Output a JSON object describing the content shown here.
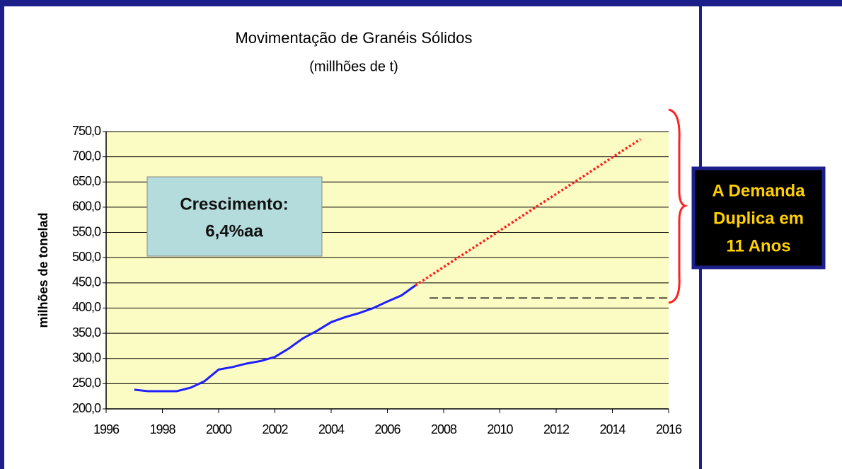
{
  "chart_data": {
    "type": "line",
    "title": "Movimentação de Granéis Sólidos",
    "subtitle": "(millhões de t)",
    "y_label": "milhões de tonelad",
    "series": [
      {
        "color": "#1f1fff",
        "style": "solid",
        "x": [
          1997,
          1997.5,
          1998,
          1998.5,
          1999,
          1999.5,
          2000,
          2000.5,
          2001,
          2001.5,
          2002,
          2002.5,
          2003,
          2003.5,
          2004,
          2004.5,
          2005,
          2005.5,
          2006,
          2006.5,
          2007
        ],
        "values": [
          238,
          235,
          235,
          235,
          242,
          255,
          278,
          283,
          290,
          295,
          303,
          320,
          340,
          355,
          372,
          382,
          390,
          400,
          413,
          425,
          445
        ]
      },
      {
        "color": "#ff1f1f",
        "style": "dotted",
        "x": [
          2007,
          2015
        ],
        "values": [
          445,
          735
        ]
      }
    ],
    "reference_line": {
      "y": 420,
      "x": [
        2007.5,
        2016
      ]
    },
    "xlim": [
      1996,
      2016
    ],
    "xticks": [
      1996,
      1998,
      2000,
      2002,
      2004,
      2006,
      2008,
      2010,
      2012,
      2014,
      2016
    ],
    "ylim": [
      200,
      750
    ],
    "yticks": [
      {
        "value": 200,
        "label": "200,0"
      },
      {
        "value": 250,
        "label": "250,0"
      },
      {
        "value": 300,
        "label": "300,0"
      },
      {
        "value": 350,
        "label": "350,0"
      },
      {
        "value": 400,
        "label": "400,0"
      },
      {
        "value": 450,
        "label": "450,0"
      },
      {
        "value": 500,
        "label": "500,0"
      },
      {
        "value": 550,
        "label": "550,0"
      },
      {
        "value": 600,
        "label": "600,0"
      },
      {
        "value": 650,
        "label": "650,0"
      },
      {
        "value": 700,
        "label": "700,0"
      },
      {
        "value": 750,
        "label": "750,0"
      }
    ],
    "grid": true,
    "annotations": [
      {
        "lines": [
          "Crescimento:",
          "6,4%aa"
        ]
      },
      {
        "lines": [
          "A Demanda",
          "Duplica em",
          "11 Anos"
        ]
      }
    ]
  }
}
